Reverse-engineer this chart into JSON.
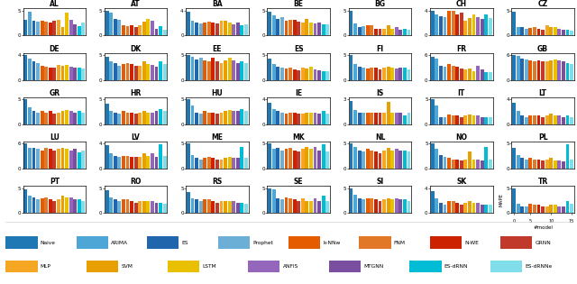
{
  "countries": [
    "AL",
    "AT",
    "BA",
    "BE",
    "BG",
    "CH",
    "CZ",
    "DE",
    "DK",
    "EE",
    "ES",
    "FI",
    "FR",
    "GB",
    "GR",
    "HR",
    "HU",
    "IE",
    "IS",
    "IT",
    "LT",
    "LU",
    "LV",
    "ME",
    "MK",
    "NL",
    "NO",
    "PL",
    "PT",
    "RO",
    "RS",
    "SE",
    "SI",
    "SK",
    "TR"
  ],
  "bar_color_list": [
    "#1f77b4",
    "#4da6d6",
    "#2166ac",
    "#6baed6",
    "#e55c00",
    "#e07828",
    "#cc2200",
    "#c0392b",
    "#f5a623",
    "#e8a000",
    "#e8c000",
    "#9467bd",
    "#7b4fa0",
    "#00bcd4",
    "#80deea"
  ],
  "data": {
    "AL": [
      3.1,
      4.8,
      2.9,
      2.8,
      3.0,
      2.8,
      2.5,
      2.9,
      3.2,
      1.7,
      4.6,
      3.1,
      2.3,
      1.9,
      2.6
    ],
    "AT": [
      5.0,
      4.6,
      3.4,
      3.1,
      2.1,
      1.9,
      2.0,
      1.7,
      2.0,
      2.7,
      3.3,
      2.9,
      1.4,
      1.8,
      1.1
    ],
    "BA": [
      3.8,
      2.4,
      2.1,
      1.9,
      2.0,
      2.2,
      2.1,
      1.9,
      2.4,
      2.3,
      2.0,
      1.8,
      2.0,
      1.7,
      1.8
    ],
    "BE": [
      4.8,
      4.1,
      3.4,
      3.7,
      3.0,
      3.2,
      3.2,
      2.7,
      2.5,
      3.3,
      2.6,
      2.4,
      2.5,
      2.3,
      2.2
    ],
    "BG": [
      5.0,
      2.4,
      1.7,
      1.8,
      2.0,
      2.1,
      1.4,
      1.3,
      1.3,
      2.1,
      1.4,
      1.7,
      1.2,
      1.3,
      1.1
    ],
    "CH": [
      4.0,
      3.3,
      3.1,
      3.0,
      4.0,
      3.9,
      3.4,
      3.7,
      2.4,
      2.8,
      3.4,
      2.9,
      2.7,
      3.4,
      2.8
    ],
    "CZ": [
      4.8,
      1.7,
      1.7,
      1.4,
      1.5,
      1.6,
      1.4,
      1.2,
      2.0,
      1.6,
      1.6,
      1.3,
      1.1,
      1.2,
      1.0
    ],
    "DE": [
      4.0,
      3.4,
      3.0,
      2.7,
      2.2,
      2.1,
      2.0,
      1.9,
      2.4,
      2.3,
      2.4,
      2.1,
      2.0,
      1.9,
      1.8
    ],
    "DK": [
      4.6,
      3.7,
      3.4,
      2.9,
      3.1,
      3.4,
      3.1,
      2.9,
      2.9,
      3.7,
      3.1,
      3.0,
      2.7,
      3.7,
      3.1
    ],
    "EE": [
      5.0,
      4.7,
      4.1,
      4.4,
      3.9,
      3.7,
      4.4,
      3.7,
      3.4,
      3.9,
      4.4,
      3.9,
      3.4,
      3.7,
      3.4
    ],
    "ES": [
      4.2,
      3.1,
      2.7,
      2.4,
      2.2,
      2.4,
      2.1,
      1.9,
      2.4,
      2.3,
      2.7,
      2.1,
      1.9,
      1.8,
      1.7
    ],
    "FI": [
      5.0,
      3.1,
      2.7,
      2.4,
      2.2,
      2.4,
      2.4,
      2.1,
      2.4,
      2.7,
      2.4,
      2.3,
      2.4,
      2.4,
      2.1
    ],
    "FR": [
      5.5,
      5.2,
      3.4,
      3.1,
      3.7,
      3.4,
      3.1,
      2.7,
      2.4,
      2.7,
      2.1,
      3.4,
      2.4,
      1.9,
      1.9
    ],
    "GB": [
      6.0,
      5.7,
      5.1,
      4.9,
      4.7,
      4.4,
      4.7,
      4.4,
      4.4,
      4.7,
      4.9,
      4.7,
      4.4,
      4.1,
      3.9
    ],
    "GR": [
      5.0,
      3.4,
      2.7,
      2.4,
      2.7,
      2.4,
      2.7,
      2.1,
      2.4,
      2.7,
      2.9,
      2.7,
      2.4,
      2.7,
      2.4
    ],
    "HR": [
      4.2,
      2.7,
      2.4,
      2.1,
      2.7,
      2.4,
      2.4,
      2.1,
      2.4,
      2.7,
      2.4,
      2.4,
      2.7,
      3.1,
      2.7
    ],
    "HU": [
      5.0,
      3.7,
      2.4,
      2.1,
      2.7,
      2.4,
      2.4,
      2.1,
      2.4,
      2.7,
      2.9,
      2.7,
      2.7,
      3.1,
      2.7
    ],
    "IE": [
      3.5,
      2.4,
      2.1,
      1.9,
      1.7,
      1.9,
      1.9,
      1.7,
      1.7,
      1.9,
      1.9,
      1.8,
      1.7,
      2.1,
      1.7
    ],
    "IS": [
      2.8,
      1.7,
      1.4,
      1.4,
      1.4,
      1.4,
      1.4,
      1.4,
      1.4,
      2.7,
      1.4,
      1.4,
      1.4,
      1.1,
      1.4
    ],
    "IT": [
      5.0,
      3.7,
      1.4,
      1.4,
      1.9,
      1.7,
      1.7,
      1.4,
      1.7,
      1.9,
      1.7,
      1.7,
      1.4,
      1.4,
      1.4
    ],
    "LT": [
      3.5,
      2.1,
      1.4,
      1.1,
      1.4,
      1.4,
      1.4,
      1.1,
      1.4,
      1.7,
      1.4,
      1.4,
      1.1,
      1.4,
      1.1
    ],
    "LU": [
      6.0,
      4.9,
      4.9,
      4.7,
      4.4,
      5.1,
      4.7,
      4.4,
      4.7,
      5.1,
      4.7,
      4.4,
      4.7,
      3.9,
      4.4
    ],
    "LV": [
      3.8,
      2.4,
      2.1,
      1.9,
      2.1,
      2.1,
      1.9,
      1.9,
      1.9,
      2.4,
      2.1,
      2.4,
      1.9,
      3.9,
      2.1
    ],
    "ME": [
      5.0,
      2.7,
      2.1,
      1.9,
      2.1,
      2.4,
      2.1,
      1.9,
      1.9,
      2.1,
      2.4,
      2.1,
      2.1,
      4.4,
      2.1
    ],
    "MK": [
      5.0,
      3.9,
      4.1,
      3.7,
      3.9,
      4.1,
      3.7,
      3.4,
      3.9,
      4.4,
      3.9,
      4.4,
      3.7,
      4.9,
      3.4
    ],
    "NL": [
      5.0,
      4.4,
      3.7,
      3.4,
      3.9,
      3.7,
      3.4,
      3.1,
      3.7,
      4.1,
      3.7,
      3.9,
      3.7,
      3.7,
      3.4
    ],
    "NO": [
      5.0,
      3.9,
      2.7,
      2.4,
      2.1,
      1.9,
      1.9,
      1.7,
      1.9,
      3.4,
      1.9,
      1.9,
      1.7,
      4.4,
      1.9
    ],
    "PL": [
      4.2,
      2.7,
      2.1,
      1.9,
      2.1,
      1.9,
      1.9,
      1.7,
      1.9,
      2.1,
      1.7,
      1.7,
      1.4,
      4.9,
      1.9
    ],
    "PT": [
      4.8,
      3.4,
      3.1,
      2.7,
      2.9,
      3.1,
      2.7,
      2.4,
      2.7,
      3.4,
      3.1,
      3.1,
      2.7,
      2.7,
      2.4
    ],
    "RO": [
      4.5,
      3.1,
      2.7,
      2.4,
      2.7,
      2.7,
      2.4,
      2.1,
      2.4,
      2.4,
      2.4,
      2.4,
      2.1,
      2.1,
      1.9
    ],
    "RS": [
      4.2,
      2.9,
      2.7,
      2.4,
      2.7,
      2.7,
      2.4,
      2.1,
      2.4,
      2.4,
      2.4,
      2.4,
      2.1,
      2.1,
      1.9
    ],
    "SE": [
      5.0,
      4.7,
      2.9,
      2.7,
      3.1,
      2.9,
      2.7,
      2.4,
      2.9,
      2.4,
      2.4,
      2.9,
      2.4,
      3.4,
      2.4
    ],
    "SI": [
      5.0,
      3.7,
      2.9,
      2.7,
      2.9,
      2.9,
      2.7,
      2.4,
      2.7,
      2.9,
      2.7,
      2.9,
      2.7,
      2.7,
      2.4
    ],
    "SK": [
      3.5,
      2.4,
      1.7,
      1.4,
      1.9,
      1.9,
      1.7,
      1.4,
      1.7,
      1.9,
      1.7,
      1.7,
      1.4,
      1.4,
      1.4
    ],
    "TR": [
      5.0,
      1.9,
      1.4,
      1.4,
      1.9,
      1.7,
      1.7,
      1.4,
      1.4,
      1.7,
      1.7,
      1.4,
      1.4,
      2.4,
      1.9
    ]
  },
  "legend_row1": [
    [
      "Naive",
      "#1f77b4"
    ],
    [
      "ARIMA",
      "#4da6d6"
    ],
    [
      "ES",
      "#2166ac"
    ],
    [
      "Prophet",
      "#6baed6"
    ],
    [
      "k-NNw",
      "#e55c00"
    ],
    [
      "FNM",
      "#e07828"
    ],
    [
      "N-WE",
      "#cc2200"
    ],
    [
      "GRNN",
      "#c0392b"
    ]
  ],
  "legend_row2": [
    [
      "MLP",
      "#f5a623"
    ],
    [
      "SVM",
      "#e8a000"
    ],
    [
      "LSTM",
      "#e8c000"
    ],
    [
      "ANFIS",
      "#9467bd"
    ],
    [
      "MTGNN",
      "#7b4fa0"
    ],
    [
      "ES-dRNN",
      "#00bcd4"
    ],
    [
      "ES-dRNNe",
      "#80deea"
    ]
  ]
}
